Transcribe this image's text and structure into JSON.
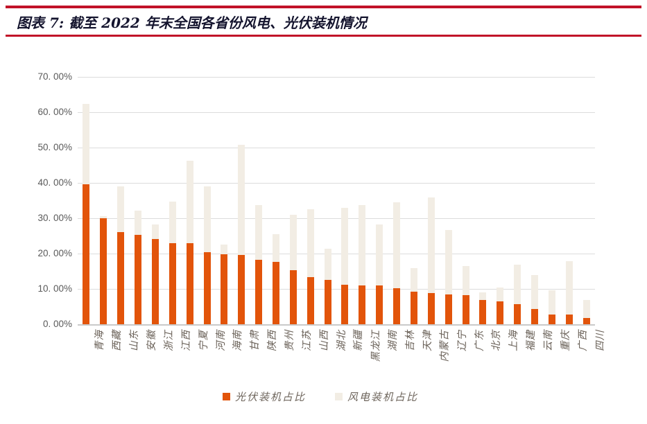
{
  "header": {
    "title": "图表 7: 截至 2022 年末全国各省份风电、光伏装机情况"
  },
  "chart_data": {
    "type": "bar",
    "stacked": true,
    "orientation": "vertical",
    "categories": [
      "青海",
      "西藏",
      "山东",
      "安徽",
      "浙江",
      "江西",
      "宁夏",
      "河南",
      "海南",
      "甘肃",
      "陕西",
      "贵州",
      "江苏",
      "山西",
      "湖北",
      "新疆",
      "黑龙江",
      "湖南",
      "吉林",
      "天津",
      "内蒙古",
      "辽宁",
      "广东",
      "北京",
      "上海",
      "福建",
      "云南",
      "重庆",
      "广西",
      "四川"
    ],
    "series": [
      {
        "name": "光伏装机占比",
        "color": "#E2540A",
        "values": [
          39.7,
          30.0,
          26.0,
          25.2,
          24.2,
          23.0,
          22.9,
          20.4,
          19.8,
          19.6,
          18.2,
          17.6,
          15.3,
          13.4,
          12.6,
          11.2,
          11.0,
          10.9,
          10.1,
          9.2,
          8.9,
          8.4,
          8.2,
          6.9,
          6.4,
          5.6,
          4.4,
          2.8,
          2.7,
          1.8
        ]
      },
      {
        "name": "风电装机占比",
        "color": "#F2EDE4",
        "values": [
          22.7,
          0.5,
          13.0,
          6.9,
          4.1,
          11.8,
          23.4,
          18.6,
          2.7,
          31.1,
          15.6,
          7.9,
          15.6,
          19.2,
          8.8,
          21.7,
          22.8,
          17.3,
          24.4,
          6.7,
          27.0,
          18.2,
          8.2,
          2.2,
          4.0,
          11.2,
          9.5,
          6.9,
          15.1,
          5.1
        ]
      }
    ],
    "ylim": [
      0,
      70
    ],
    "yticks_top_down": [
      "70. 00%",
      "60. 00%",
      "50. 00%",
      "40. 00%",
      "30. 00%",
      "20. 00%",
      "10. 00%",
      "0. 00%"
    ],
    "unit": "percent",
    "grid": true,
    "legend_position": "bottom"
  },
  "colors": {
    "accent_rule": "#C11228",
    "solar_bar": "#E2540A",
    "wind_bar": "#F2EDE4",
    "gridline": "#DCDCDC",
    "axis_text": "#595959",
    "title_text": "#14142e"
  }
}
